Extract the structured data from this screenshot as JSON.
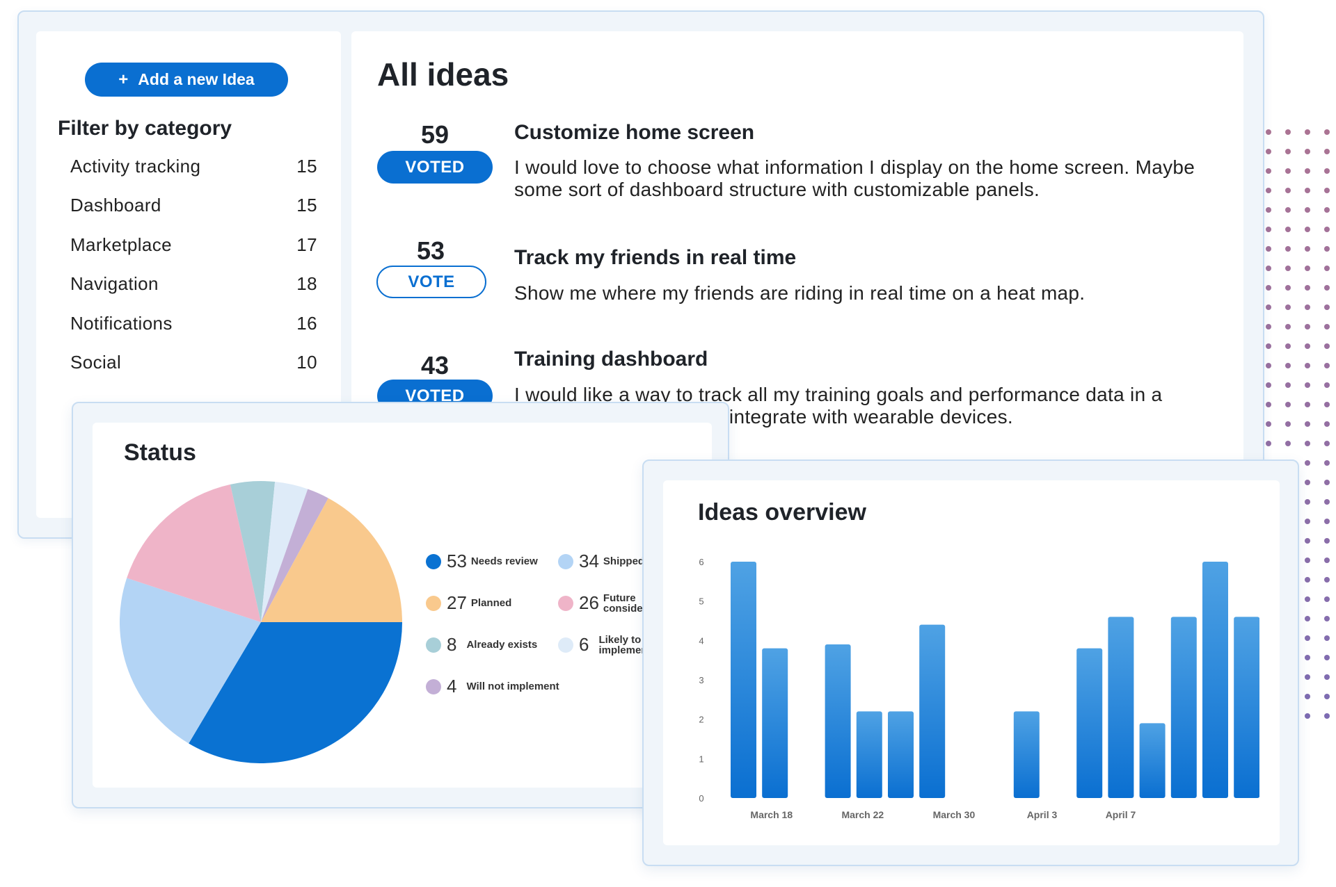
{
  "sidebar": {
    "add_button": "Add a new Idea",
    "filter_title": "Filter by category",
    "categories": [
      {
        "label": "Activity tracking",
        "count": "15"
      },
      {
        "label": "Dashboard",
        "count": "15"
      },
      {
        "label": "Marketplace",
        "count": "17"
      },
      {
        "label": "Navigation",
        "count": "18"
      },
      {
        "label": "Notifications",
        "count": "16"
      },
      {
        "label": "Social",
        "count": "10"
      }
    ]
  },
  "ideas": {
    "title": "All ideas",
    "items": [
      {
        "votes": "59",
        "button": "VOTED",
        "voted": true,
        "title": "Customize home screen",
        "description": "I would love to choose what information I display on the home screen. Maybe some sort of dashboard structure with customizable panels."
      },
      {
        "votes": "53",
        "button": "VOTE",
        "voted": false,
        "title": "Track my friends in real time",
        "description": "Show me where my friends are riding in real time on a heat map."
      },
      {
        "votes": "43",
        "button": "VOTED",
        "voted": true,
        "title": "Training dashboard",
        "description": "I would like a way to track all my training goals and performance data in a single view. This should integrate with wearable devices."
      }
    ]
  },
  "status": {
    "title": "Status",
    "legend": [
      {
        "value": "53",
        "label": "Needs review"
      },
      {
        "value": "34",
        "label": "Shipped"
      },
      {
        "value": "27",
        "label": "Planned"
      },
      {
        "value": "26",
        "label": "Future consideration"
      },
      {
        "value": "8",
        "label": "Already exists"
      },
      {
        "value": "6",
        "label": "Likely to implement"
      },
      {
        "value": "4",
        "label": "Will not implement"
      }
    ]
  },
  "overview": {
    "title": "Ideas overview"
  },
  "colors": {
    "accent": "#0a6fd1",
    "needs_review": "#0a72d2",
    "shipped": "#b3d4f5",
    "planned": "#f9c98d",
    "future": "#efb4c8",
    "already_exists": "#a8cfd8",
    "likely": "#deebf8",
    "will_not": "#c3afd6"
  },
  "chart_data": [
    {
      "type": "pie",
      "title": "Status",
      "labels": [
        "Needs review",
        "Shipped",
        "Future consideration",
        "Already exists",
        "Likely to implement",
        "Will not implement",
        "Planned"
      ],
      "values": [
        53,
        34,
        26,
        8,
        6,
        4,
        27
      ]
    },
    {
      "type": "bar",
      "title": "Ideas overview",
      "ylim": [
        0,
        6
      ],
      "yticks": [
        "0",
        "1",
        "2",
        "3",
        "4",
        "5",
        "6"
      ],
      "xtick_labels": [
        "March 18",
        "March 22",
        "March 30",
        "April 3",
        "April 7"
      ],
      "values": [
        6,
        3.8,
        null,
        3.9,
        2.2,
        2.2,
        4.4,
        null,
        null,
        2.2,
        null,
        3.8,
        4.6,
        1.9,
        4.6,
        6,
        4.6
      ]
    }
  ]
}
